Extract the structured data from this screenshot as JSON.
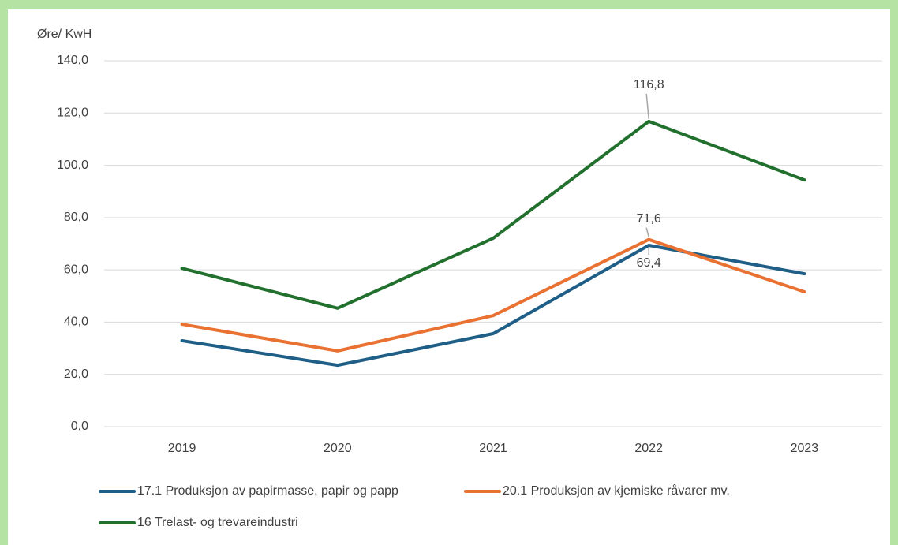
{
  "chart_data": {
    "type": "line",
    "y_label": "Øre/ KwH",
    "categories": [
      "2019",
      "2020",
      "2021",
      "2022",
      "2023"
    ],
    "series": [
      {
        "name": "17.1 Produksjon av papirmasse, papir og papp",
        "color": "#1f5f87",
        "values": [
          32.9,
          23.5,
          35.6,
          69.4,
          58.5
        ],
        "value_labels": [
          null,
          null,
          null,
          "69,4",
          null
        ]
      },
      {
        "name": "20.1 Produksjon av kjemiske råvarer mv.",
        "color": "#e97132",
        "values": [
          39.2,
          29.0,
          42.5,
          71.6,
          51.6
        ],
        "value_labels": [
          null,
          null,
          null,
          "71,6",
          null
        ]
      },
      {
        "name": "16 Trelast- og trevareindustri",
        "color": "#22702d",
        "values": [
          60.6,
          45.3,
          72.1,
          116.8,
          94.4
        ],
        "value_labels": [
          null,
          null,
          null,
          "116,8",
          null
        ]
      }
    ],
    "ylim": [
      0,
      140
    ],
    "yticks": [
      {
        "value": 0,
        "label": "0,0"
      },
      {
        "value": 20,
        "label": "20,0"
      },
      {
        "value": 40,
        "label": "40,0"
      },
      {
        "value": 60,
        "label": "60,0"
      },
      {
        "value": 80,
        "label": "80,0"
      },
      {
        "value": 100,
        "label": "100,0"
      },
      {
        "value": 120,
        "label": "120,0"
      },
      {
        "value": 140,
        "label": "140,0"
      }
    ],
    "grid": true
  }
}
